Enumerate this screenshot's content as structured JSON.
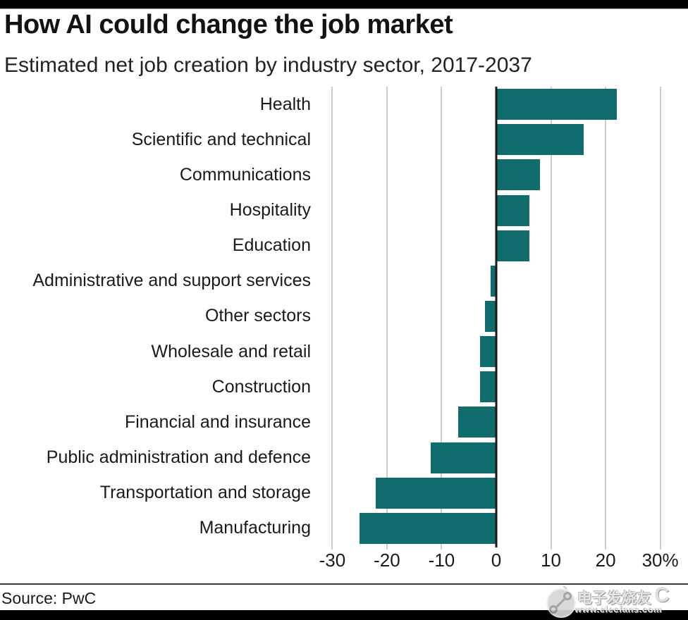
{
  "page": {
    "title": "How AI could change the job market",
    "subtitle": "Estimated net job creation by industry sector, 2017-2037",
    "source": "Source: PwC"
  },
  "chart_data": {
    "type": "bar",
    "orientation": "horizontal",
    "title": "How AI could change the job market",
    "subtitle": "Estimated net job creation by industry sector, 2017-2037",
    "categories": [
      "Health",
      "Scientific and technical",
      "Communications",
      "Hospitality",
      "Education",
      "Administrative and support services",
      "Other sectors",
      "Wholesale and retail",
      "Construction",
      "Financial and insurance",
      "Public administration and defence",
      "Transportation and storage",
      "Manufacturing"
    ],
    "values": [
      22,
      16,
      8,
      6,
      6,
      -1,
      -2,
      -3,
      -3,
      -7,
      -12,
      -22,
      -25
    ],
    "unit": "%",
    "xlabel": "",
    "ylabel": "",
    "xlim": [
      -33.4,
      33.4
    ],
    "tick_values": [
      -30,
      -20,
      -10,
      0,
      10,
      20,
      30
    ],
    "tick_labels": [
      "-30",
      "-20",
      "-10",
      "0",
      "10",
      "20",
      "30%"
    ],
    "grid": true,
    "legend": false,
    "bar_color": "#106C6D",
    "grid_color": "#CBCBCB",
    "zero_line_color": "#1A1A1A",
    "text_color": "#1A1A1A"
  },
  "watermark": {
    "name": "电子发烧友",
    "suffix": "C",
    "url": "www.elecfans.com"
  }
}
